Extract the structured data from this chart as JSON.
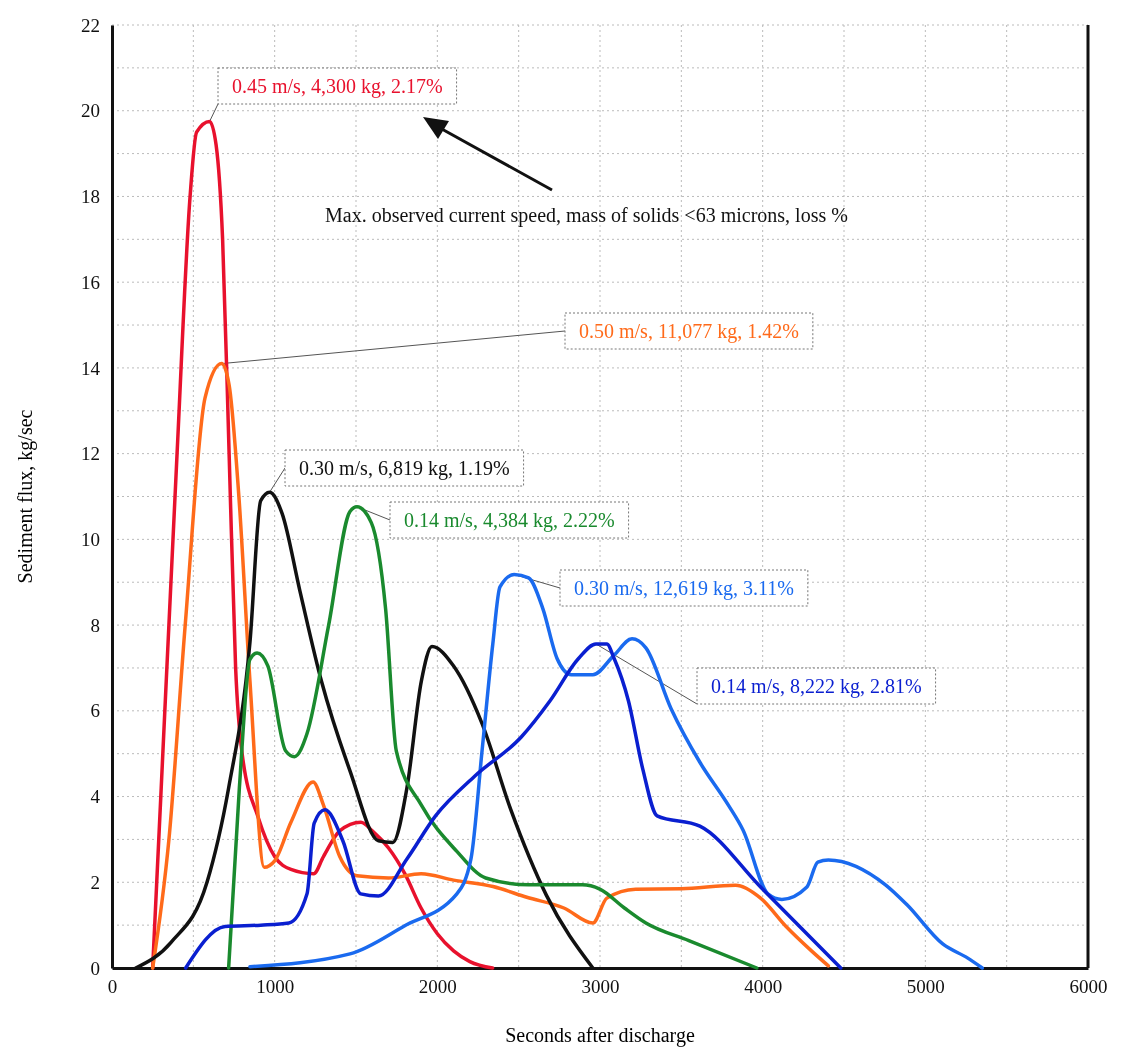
{
  "chart_data": {
    "type": "line",
    "xlabel": "Seconds after discharge",
    "ylabel": "Sediment flux, kg/sec",
    "xlim": [
      0,
      6000
    ],
    "xticks": [
      0,
      1000,
      2000,
      3000,
      4000,
      5000,
      6000
    ],
    "ylim": [
      0,
      22
    ],
    "yticks": [
      0,
      2,
      4,
      6,
      8,
      10,
      12,
      14,
      16,
      18,
      20,
      22
    ],
    "grid": true,
    "marker": "none",
    "line_style": "solid",
    "annotations": [
      "Max. observed current speed, mass of solids <63 microns, loss %"
    ],
    "series": [
      {
        "name": "0.45 m/s, 4,300 kg, 2.17%",
        "color": "#e8112d",
        "x": [
          250,
          300,
          400,
          480,
          520,
          600,
          640,
          680,
          720,
          760,
          800,
          900,
          1000,
          1100,
          1240,
          1300,
          1400,
          1530,
          1600,
          1700,
          1800,
          1900,
          2000,
          2100,
          2200,
          2340
        ],
        "values": [
          0,
          4,
          12,
          18,
          19.5,
          19.75,
          19.2,
          17,
          12,
          7,
          5,
          3.5,
          2.6,
          2.3,
          2.2,
          2.6,
          3.2,
          3.4,
          3.2,
          2.8,
          2.2,
          1.4,
          0.8,
          0.4,
          0.15,
          0
        ]
      },
      {
        "name": "0.50 m/s, 11,077 kg, 1.42%",
        "color": "#ff6a1a",
        "x": [
          250,
          350,
          450,
          572,
          674,
          720,
          780,
          848,
          936,
          1000,
          1100,
          1236,
          1300,
          1400,
          1506,
          1700,
          1900,
          2100,
          2342,
          2550,
          2778,
          2956,
          3042,
          3219,
          3500,
          3833,
          3987,
          4141,
          4300,
          4404
        ],
        "values": [
          0,
          3,
          8,
          13.3,
          14.1,
          13.6,
          11,
          6.7,
          2.35,
          2.5,
          3.4,
          4.34,
          3.8,
          2.6,
          2.15,
          2.1,
          2.2,
          2.05,
          1.9,
          1.65,
          1.4,
          1.05,
          1.63,
          1.84,
          1.85,
          1.93,
          1.63,
          0.98,
          0.4,
          0.05
        ]
      },
      {
        "name": "0.30 m/s, 6,819 kg, 1.19%",
        "color": "#111111",
        "x": [
          146,
          363,
          584,
          717,
          848,
          914,
          969,
          1046,
          1155,
          1287,
          1463,
          1638,
          1726,
          1813,
          1902,
          1967,
          2099,
          2275,
          2451,
          2670,
          2956
        ],
        "values": [
          0,
          0.6,
          2.0,
          4.2,
          7.6,
          10.9,
          11.1,
          10.6,
          8.8,
          6.7,
          4.6,
          2.97,
          2.93,
          4.2,
          6.7,
          7.5,
          7.05,
          5.7,
          3.7,
          1.7,
          0
        ]
      },
      {
        "name": "0.14 m/s, 4,384 kg, 2.22%",
        "color": "#1a8a2e",
        "x": [
          717,
          783,
          848,
          892,
          958,
          1067,
          1122,
          1199,
          1331,
          1463,
          1506,
          1594,
          1682,
          1748,
          1902,
          2120,
          2297,
          2561,
          2890,
          2999,
          3150,
          3282,
          3546,
          3964
        ],
        "values": [
          0,
          4.2,
          7.2,
          7.35,
          7.05,
          5.07,
          4.93,
          5.47,
          7.98,
          10.65,
          10.76,
          10.39,
          8.38,
          5.06,
          3.8,
          2.72,
          2.1,
          1.94,
          1.94,
          1.84,
          1.4,
          1.05,
          0.64,
          0
        ]
      },
      {
        "name": "0.30 m/s, 12,619 kg, 3.11%",
        "color": "#1a6aef",
        "x": [
          848,
          1463,
          1792,
          2120,
          2207,
          2275,
          2341,
          2385,
          2472,
          2561,
          2648,
          2736,
          2824,
          2956,
          3087,
          3197,
          3282,
          3437,
          3614,
          3789,
          3879,
          4032,
          4118,
          4272,
          4339,
          4404,
          4755,
          4886,
          5107,
          5261,
          5350
        ],
        "values": [
          0.03,
          0.33,
          0.97,
          1.73,
          2.55,
          5.07,
          7.56,
          8.89,
          9.18,
          9.1,
          8.39,
          7.22,
          6.84,
          6.84,
          7.3,
          7.68,
          7.47,
          6.05,
          4.8,
          3.8,
          3.22,
          1.73,
          1.6,
          1.89,
          2.47,
          2.52,
          1.94,
          1.48,
          0.56,
          0.23,
          0
        ]
      },
      {
        "name": "0.14 m/s, 8,222 kg, 2.81%",
        "color": "#0a1fd0",
        "x": [
          453,
          695,
          914,
          1088,
          1199,
          1243,
          1309,
          1419,
          1529,
          1638,
          1814,
          1989,
          2231,
          2516,
          2692,
          2868,
          2975,
          3042,
          3087,
          3175,
          3263,
          3351,
          3614,
          3987,
          4480
        ],
        "values": [
          0,
          0.97,
          1.0,
          1.05,
          1.73,
          3.38,
          3.69,
          2.97,
          1.73,
          1.68,
          2.55,
          3.55,
          4.48,
          5.39,
          6.23,
          7.22,
          7.56,
          7.56,
          7.22,
          6.23,
          4.64,
          3.55,
          3.31,
          1.89,
          0
        ]
      }
    ]
  }
}
